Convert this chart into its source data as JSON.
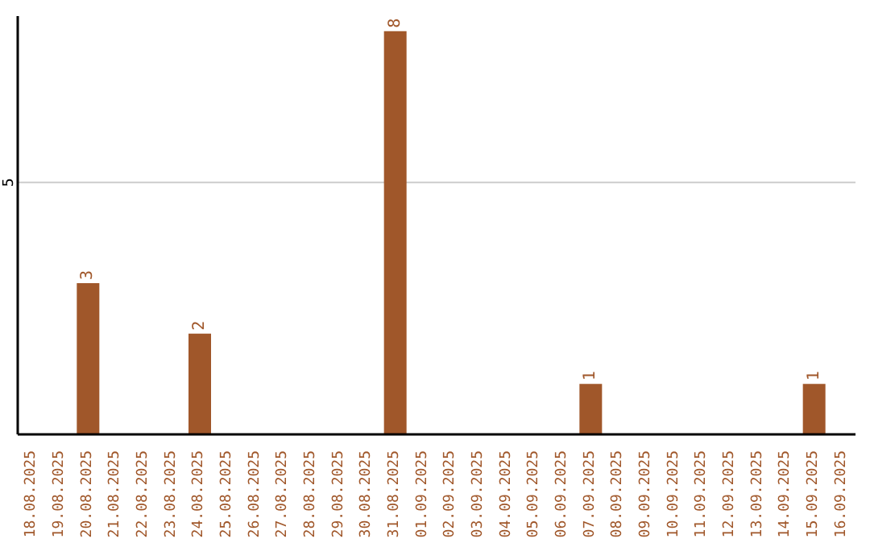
{
  "chart_data": {
    "type": "bar",
    "categories": [
      "18.08.2025",
      "19.08.2025",
      "20.08.2025",
      "21.08.2025",
      "22.08.2025",
      "23.08.2025",
      "24.08.2025",
      "25.08.2025",
      "26.08.2025",
      "27.08.2025",
      "28.08.2025",
      "29.08.2025",
      "30.08.2025",
      "31.08.2025",
      "01.09.2025",
      "02.09.2025",
      "03.09.2025",
      "04.09.2025",
      "05.09.2025",
      "06.09.2025",
      "07.09.2025",
      "08.09.2025",
      "09.09.2025",
      "10.09.2025",
      "11.09.2025",
      "12.09.2025",
      "13.09.2025",
      "14.09.2025",
      "15.09.2025",
      "16.09.2025"
    ],
    "values": [
      0,
      0,
      3,
      0,
      0,
      0,
      2,
      0,
      0,
      0,
      0,
      0,
      0,
      8,
      0,
      0,
      0,
      0,
      0,
      0,
      1,
      0,
      0,
      0,
      0,
      0,
      0,
      0,
      1,
      0
    ],
    "value_labels": [
      null,
      null,
      "3",
      null,
      null,
      null,
      "2",
      null,
      null,
      null,
      null,
      null,
      null,
      "8",
      null,
      null,
      null,
      null,
      null,
      null,
      "1",
      null,
      null,
      null,
      null,
      null,
      null,
      null,
      "1",
      null
    ],
    "color": "#a0572a",
    "ylim": [
      0,
      8.3
    ],
    "yticks": [
      5
    ],
    "grid": "y"
  }
}
